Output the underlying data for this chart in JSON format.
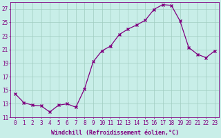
{
  "xlabel": "Windchill (Refroidissement éolien,°C)",
  "x": [
    0,
    1,
    2,
    3,
    4,
    5,
    6,
    7,
    8,
    9,
    10,
    11,
    12,
    13,
    14,
    15,
    16,
    17,
    18,
    19,
    20,
    21,
    22,
    23
  ],
  "y": [
    14.5,
    13.2,
    12.8,
    12.7,
    11.8,
    12.8,
    13.0,
    12.5,
    15.2,
    19.2,
    20.8,
    21.5,
    23.2,
    24.0,
    24.6,
    25.3,
    26.9,
    27.6,
    27.5,
    25.2,
    21.3,
    20.3,
    19.8,
    20.8
  ],
  "line_color": "#800080",
  "marker": "x",
  "markersize": 3,
  "linewidth": 0.9,
  "bg_color": "#c8eee8",
  "grid_color": "#a0ccc0",
  "tick_color": "#800080",
  "label_color": "#800080",
  "ylim": [
    11,
    28
  ],
  "yticks": [
    11,
    13,
    15,
    17,
    19,
    21,
    23,
    25,
    27
  ],
  "xlim": [
    -0.5,
    23.5
  ],
  "xticks": [
    0,
    1,
    2,
    3,
    4,
    5,
    6,
    7,
    8,
    9,
    10,
    11,
    12,
    13,
    14,
    15,
    16,
    17,
    18,
    19,
    20,
    21,
    22,
    23
  ],
  "tick_fontsize": 5.5,
  "xlabel_fontsize": 6.0
}
